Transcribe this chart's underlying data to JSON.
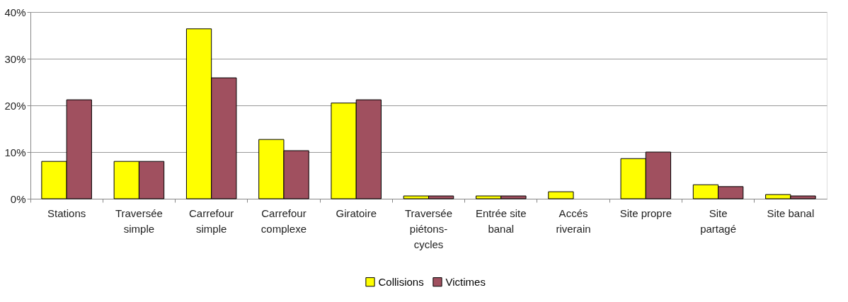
{
  "chart_data": {
    "type": "bar",
    "categories": [
      "Stations",
      "Traversée\nsimple",
      "Carrefour\nsimple",
      "Carrefour\ncomplexe",
      "Giratoire",
      "Traversée\npiétons-\ncycles",
      "Entrée site\nbanal",
      "Accés\nriverain",
      "Site propre",
      "Site\npartagé",
      "Site banal"
    ],
    "series": [
      {
        "name": "Collisions",
        "color": "#ffff00",
        "values": [
          8.0,
          8.0,
          36.4,
          12.7,
          20.5,
          0.6,
          0.6,
          1.5,
          8.6,
          3.0,
          0.9
        ]
      },
      {
        "name": "Victimes",
        "color": "#a0505f",
        "values": [
          21.2,
          8.0,
          25.9,
          10.3,
          21.2,
          0.6,
          0.6,
          null,
          10.0,
          2.6,
          0.6
        ]
      }
    ],
    "ylim": [
      0,
      40
    ],
    "yticks": [
      {
        "value": 0,
        "label": "0%"
      },
      {
        "value": 10,
        "label": "10%"
      },
      {
        "value": 20,
        "label": "20%"
      },
      {
        "value": 30,
        "label": "30%"
      },
      {
        "value": 40,
        "label": "40%"
      }
    ],
    "grid": "y",
    "legend": "bottom"
  }
}
